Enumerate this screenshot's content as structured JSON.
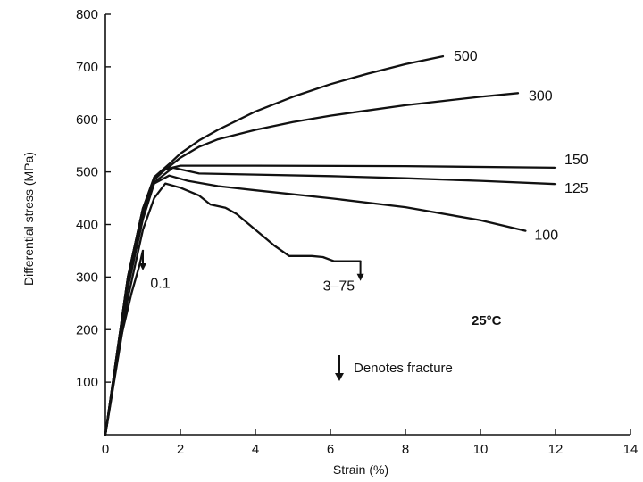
{
  "chart_data": {
    "type": "line",
    "title": "",
    "xlabel": "Strain (%)",
    "ylabel": "Differential stress (MPa)",
    "xlim": [
      0,
      14
    ],
    "ylim": [
      0,
      800
    ],
    "xticks": [
      0,
      2,
      4,
      6,
      8,
      10,
      12,
      14
    ],
    "yticks": [
      100,
      200,
      300,
      400,
      500,
      600,
      700,
      800
    ],
    "grid": false,
    "temperature_label": "25°C",
    "legend_text": "Denotes fracture",
    "series": [
      {
        "name": "500",
        "x": [
          0,
          0.6,
          1.0,
          1.3,
          1.7,
          2.0,
          2.5,
          3.0,
          4.0,
          5.0,
          6.0,
          7.0,
          8.0,
          9.0
        ],
        "y": [
          0,
          300,
          430,
          490,
          515,
          535,
          560,
          580,
          615,
          643,
          667,
          687,
          705,
          720
        ]
      },
      {
        "name": "300",
        "x": [
          0,
          0.6,
          1.0,
          1.3,
          1.7,
          2.0,
          2.5,
          3.0,
          4.0,
          5.0,
          6.0,
          7.0,
          8.0,
          9.0,
          10.0,
          11.0
        ],
        "y": [
          0,
          300,
          430,
          488,
          510,
          527,
          548,
          562,
          580,
          595,
          607,
          617,
          627,
          635,
          643,
          650
        ]
      },
      {
        "name": "150",
        "x": [
          0,
          0.6,
          1.0,
          1.3,
          1.6,
          2.0,
          4.0,
          8.0,
          12.0
        ],
        "y": [
          0,
          300,
          430,
          485,
          505,
          512,
          512,
          511,
          508
        ]
      },
      {
        "name": "125",
        "x": [
          0,
          0.6,
          1.0,
          1.3,
          1.8,
          2.5,
          4.0,
          6.0,
          8.0,
          10.0,
          12.0
        ],
        "y": [
          0,
          290,
          420,
          480,
          508,
          497,
          495,
          492,
          488,
          483,
          477
        ]
      },
      {
        "name": "100",
        "x": [
          0,
          0.6,
          1.0,
          1.3,
          1.7,
          2.2,
          3.0,
          4.0,
          6.0,
          8.0,
          10.0,
          11.2
        ],
        "y": [
          0,
          280,
          410,
          478,
          493,
          483,
          473,
          465,
          450,
          433,
          408,
          388
        ]
      },
      {
        "name": "3-75",
        "x": [
          0,
          0.6,
          1.0,
          1.3,
          1.6,
          2.0,
          2.5,
          2.8,
          3.2,
          3.5,
          4.0,
          4.5,
          4.9,
          5.5,
          5.8,
          6.1,
          6.8
        ],
        "y": [
          0,
          260,
          390,
          450,
          478,
          470,
          455,
          438,
          432,
          420,
          390,
          360,
          340,
          340,
          338,
          330,
          330
        ]
      },
      {
        "name": "0.1",
        "x": [
          0,
          0.4,
          0.7,
          0.9,
          1.0
        ],
        "y": [
          0,
          180,
          270,
          320,
          350
        ]
      }
    ],
    "annotations": [
      {
        "text": "0.1",
        "x": 1.2,
        "y": 310
      },
      {
        "text": "3–75",
        "x": 5.8,
        "y": 305
      }
    ],
    "fracture_markers": [
      {
        "series": "0.1",
        "x": 1.0,
        "y": 350
      },
      {
        "series": "3-75",
        "x": 6.8,
        "y": 330
      }
    ]
  }
}
